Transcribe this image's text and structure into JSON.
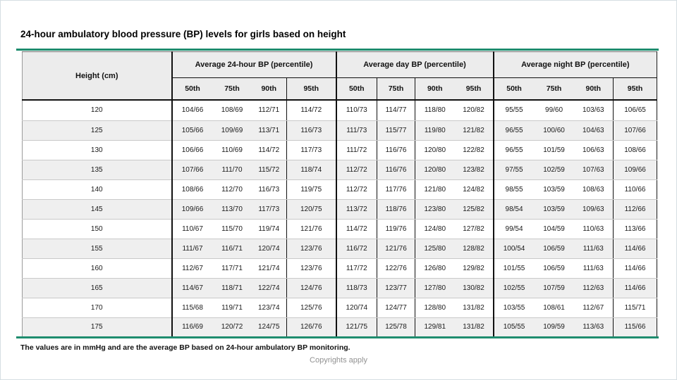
{
  "page": {
    "title": "24-hour ambulatory blood pressure (BP) levels for girls based on height",
    "footnote": "The values are in mmHg and are the average BP based on 24-hour ambulatory BP monitoring.",
    "copyright": "Copyrights apply"
  },
  "colors": {
    "accent_teal": "#1e8c6e",
    "header_bg": "#ececec",
    "row_alt_bg": "#efefef",
    "row_bg": "#ffffff",
    "grid_light": "#c9c9c9",
    "grid_dark": "#111111",
    "copyright_gray": "#919191"
  },
  "table": {
    "height_header": "Height (cm)",
    "groups": [
      {
        "label": "Average 24-hour BP (percentile)"
      },
      {
        "label": "Average day BP (percentile)"
      },
      {
        "label": "Average night BP (percentile)"
      }
    ],
    "percentiles": [
      "50th",
      "75th",
      "90th",
      "95th"
    ],
    "rows": [
      {
        "height": "120",
        "bp24": [
          "104/66",
          "108/69",
          "112/71",
          "114/72"
        ],
        "day": [
          "110/73",
          "114/77",
          "118/80",
          "120/82"
        ],
        "night": [
          "95/55",
          "99/60",
          "103/63",
          "106/65"
        ]
      },
      {
        "height": "125",
        "bp24": [
          "105/66",
          "109/69",
          "113/71",
          "116/73"
        ],
        "day": [
          "111/73",
          "115/77",
          "119/80",
          "121/82"
        ],
        "night": [
          "96/55",
          "100/60",
          "104/63",
          "107/66"
        ]
      },
      {
        "height": "130",
        "bp24": [
          "106/66",
          "110/69",
          "114/72",
          "117/73"
        ],
        "day": [
          "111/72",
          "116/76",
          "120/80",
          "122/82"
        ],
        "night": [
          "96/55",
          "101/59",
          "106/63",
          "108/66"
        ]
      },
      {
        "height": "135",
        "bp24": [
          "107/66",
          "111/70",
          "115/72",
          "118/74"
        ],
        "day": [
          "112/72",
          "116/76",
          "120/80",
          "123/82"
        ],
        "night": [
          "97/55",
          "102/59",
          "107/63",
          "109/66"
        ]
      },
      {
        "height": "140",
        "bp24": [
          "108/66",
          "112/70",
          "116/73",
          "119/75"
        ],
        "day": [
          "112/72",
          "117/76",
          "121/80",
          "124/82"
        ],
        "night": [
          "98/55",
          "103/59",
          "108/63",
          "110/66"
        ]
      },
      {
        "height": "145",
        "bp24": [
          "109/66",
          "113/70",
          "117/73",
          "120/75"
        ],
        "day": [
          "113/72",
          "118/76",
          "123/80",
          "125/82"
        ],
        "night": [
          "98/54",
          "103/59",
          "109/63",
          "112/66"
        ]
      },
      {
        "height": "150",
        "bp24": [
          "110/67",
          "115/70",
          "119/74",
          "121/76"
        ],
        "day": [
          "114/72",
          "119/76",
          "124/80",
          "127/82"
        ],
        "night": [
          "99/54",
          "104/59",
          "110/63",
          "113/66"
        ]
      },
      {
        "height": "155",
        "bp24": [
          "111/67",
          "116/71",
          "120/74",
          "123/76"
        ],
        "day": [
          "116/72",
          "121/76",
          "125/80",
          "128/82"
        ],
        "night": [
          "100/54",
          "106/59",
          "111/63",
          "114/66"
        ]
      },
      {
        "height": "160",
        "bp24": [
          "112/67",
          "117/71",
          "121/74",
          "123/76"
        ],
        "day": [
          "117/72",
          "122/76",
          "126/80",
          "129/82"
        ],
        "night": [
          "101/55",
          "106/59",
          "111/63",
          "114/66"
        ]
      },
      {
        "height": "165",
        "bp24": [
          "114/67",
          "118/71",
          "122/74",
          "124/76"
        ],
        "day": [
          "118/73",
          "123/77",
          "127/80",
          "130/82"
        ],
        "night": [
          "102/55",
          "107/59",
          "112/63",
          "114/66"
        ]
      },
      {
        "height": "170",
        "bp24": [
          "115/68",
          "119/71",
          "123/74",
          "125/76"
        ],
        "day": [
          "120/74",
          "124/77",
          "128/80",
          "131/82"
        ],
        "night": [
          "103/55",
          "108/61",
          "112/67",
          "115/71"
        ]
      },
      {
        "height": "175",
        "bp24": [
          "116/69",
          "120/72",
          "124/75",
          "126/76"
        ],
        "day": [
          "121/75",
          "125/78",
          "129/81",
          "131/82"
        ],
        "night": [
          "105/55",
          "109/59",
          "113/63",
          "115/66"
        ]
      }
    ]
  }
}
